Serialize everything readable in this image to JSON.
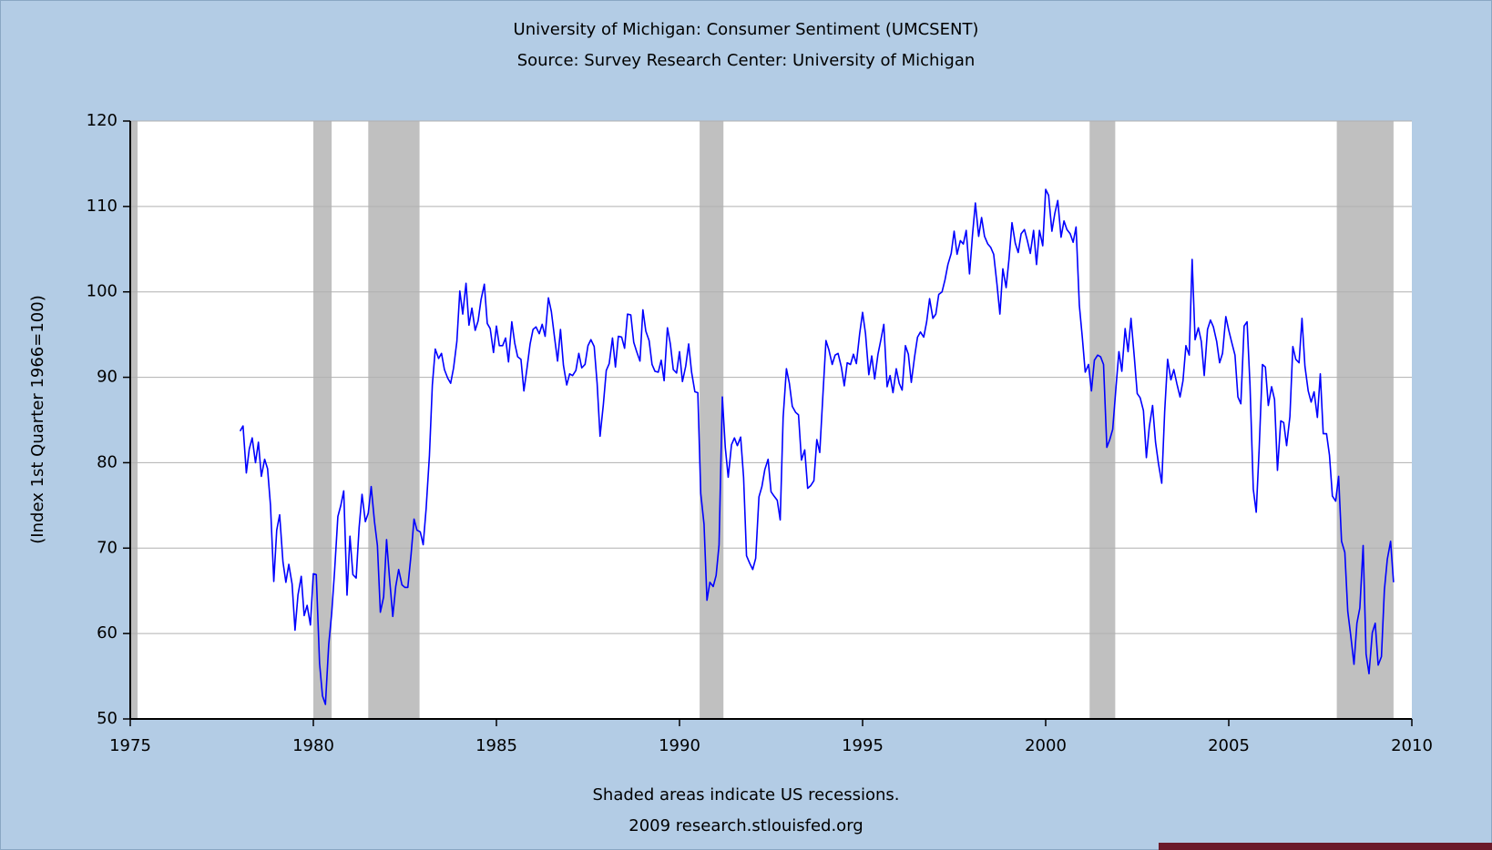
{
  "chart_data": {
    "type": "line",
    "title": "University of Michigan: Consumer Sentiment (UMCSENT)",
    "subtitle": "Source: Survey Research Center: University of Michigan",
    "y_label": "(Index 1st Quarter 1966=100)",
    "footnote": "Shaded areas indicate US recessions.",
    "credit": "2009 research.stlouisfed.org",
    "xlim": [
      1975,
      2010
    ],
    "xticks": [
      1975,
      1980,
      1985,
      1990,
      1995,
      2000,
      2005,
      2010
    ],
    "ylim": [
      50,
      120
    ],
    "yticks": [
      50,
      60,
      70,
      80,
      90,
      100,
      110,
      120
    ],
    "grid": true,
    "recession_color": "#c0c0c0",
    "recessions": [
      [
        1975.0,
        1975.2
      ],
      [
        1980.0,
        1980.5
      ],
      [
        1981.5,
        1982.9
      ],
      [
        1990.55,
        1991.2
      ],
      [
        2001.2,
        2001.9
      ],
      [
        2007.95,
        2009.5
      ]
    ],
    "series": [
      {
        "name": "UMCSENT",
        "color": "#0000ff",
        "x": [
          1978,
          1978.08,
          1978.17,
          1978.25,
          1978.33,
          1978.42,
          1978.5,
          1978.58,
          1978.67,
          1978.75,
          1978.83,
          1978.92,
          1979,
          1979.08,
          1979.17,
          1979.25,
          1979.33,
          1979.42,
          1979.5,
          1979.58,
          1979.67,
          1979.75,
          1979.83,
          1979.92,
          1980,
          1980.08,
          1980.17,
          1980.25,
          1980.33,
          1980.42,
          1980.5,
          1980.58,
          1980.67,
          1980.75,
          1980.83,
          1980.92,
          1981,
          1981.08,
          1981.17,
          1981.25,
          1981.33,
          1981.42,
          1981.5,
          1981.58,
          1981.67,
          1981.75,
          1981.83,
          1981.92,
          1982,
          1982.08,
          1982.17,
          1982.25,
          1982.33,
          1982.42,
          1982.5,
          1982.58,
          1982.67,
          1982.75,
          1982.83,
          1982.92,
          1983,
          1983.08,
          1983.17,
          1983.25,
          1983.33,
          1983.42,
          1983.5,
          1983.58,
          1983.67,
          1983.75,
          1983.83,
          1983.92,
          1984,
          1984.08,
          1984.17,
          1984.25,
          1984.33,
          1984.42,
          1984.5,
          1984.58,
          1984.67,
          1984.75,
          1984.83,
          1984.92,
          1985,
          1985.08,
          1985.17,
          1985.25,
          1985.33,
          1985.42,
          1985.5,
          1985.58,
          1985.67,
          1985.75,
          1985.83,
          1985.92,
          1986,
          1986.08,
          1986.17,
          1986.25,
          1986.33,
          1986.42,
          1986.5,
          1986.58,
          1986.67,
          1986.75,
          1986.83,
          1986.92,
          1987,
          1987.08,
          1987.17,
          1987.25,
          1987.33,
          1987.42,
          1987.5,
          1987.58,
          1987.67,
          1987.75,
          1987.83,
          1987.92,
          1988,
          1988.08,
          1988.17,
          1988.25,
          1988.33,
          1988.42,
          1988.5,
          1988.58,
          1988.67,
          1988.75,
          1988.83,
          1988.92,
          1989,
          1989.08,
          1989.17,
          1989.25,
          1989.33,
          1989.42,
          1989.5,
          1989.58,
          1989.67,
          1989.75,
          1989.83,
          1989.92,
          1990,
          1990.08,
          1990.17,
          1990.25,
          1990.33,
          1990.42,
          1990.5,
          1990.58,
          1990.67,
          1990.75,
          1990.83,
          1990.92,
          1991,
          1991.08,
          1991.17,
          1991.25,
          1991.33,
          1991.42,
          1991.5,
          1991.58,
          1991.67,
          1991.75,
          1991.83,
          1991.92,
          1992,
          1992.08,
          1992.17,
          1992.25,
          1992.33,
          1992.42,
          1992.5,
          1992.58,
          1992.67,
          1992.75,
          1992.83,
          1992.92,
          1993,
          1993.08,
          1993.17,
          1993.25,
          1993.33,
          1993.42,
          1993.5,
          1993.58,
          1993.67,
          1993.75,
          1993.83,
          1993.92,
          1994,
          1994.08,
          1994.17,
          1994.25,
          1994.33,
          1994.42,
          1994.5,
          1994.58,
          1994.67,
          1994.75,
          1994.83,
          1994.92,
          1995,
          1995.08,
          1995.17,
          1995.25,
          1995.33,
          1995.42,
          1995.5,
          1995.58,
          1995.67,
          1995.75,
          1995.83,
          1995.92,
          1996,
          1996.08,
          1996.17,
          1996.25,
          1996.33,
          1996.42,
          1996.5,
          1996.58,
          1996.67,
          1996.75,
          1996.83,
          1996.92,
          1997,
          1997.08,
          1997.17,
          1997.25,
          1997.33,
          1997.42,
          1997.5,
          1997.58,
          1997.67,
          1997.75,
          1997.83,
          1997.92,
          1998,
          1998.08,
          1998.17,
          1998.25,
          1998.33,
          1998.42,
          1998.5,
          1998.58,
          1998.67,
          1998.75,
          1998.83,
          1998.92,
          1999,
          1999.08,
          1999.17,
          1999.25,
          1999.33,
          1999.42,
          1999.5,
          1999.58,
          1999.67,
          1999.75,
          1999.83,
          1999.92,
          2000,
          2000.08,
          2000.17,
          2000.25,
          2000.33,
          2000.42,
          2000.5,
          2000.58,
          2000.67,
          2000.75,
          2000.83,
          2000.92,
          2001,
          2001.08,
          2001.17,
          2001.25,
          2001.33,
          2001.42,
          2001.5,
          2001.58,
          2001.67,
          2001.75,
          2001.83,
          2001.92,
          2002,
          2002.08,
          2002.17,
          2002.25,
          2002.33,
          2002.42,
          2002.5,
          2002.58,
          2002.67,
          2002.75,
          2002.83,
          2002.92,
          2003,
          2003.08,
          2003.17,
          2003.25,
          2003.33,
          2003.42,
          2003.5,
          2003.58,
          2003.67,
          2003.75,
          2003.83,
          2003.92,
          2004,
          2004.08,
          2004.17,
          2004.25,
          2004.33,
          2004.42,
          2004.5,
          2004.58,
          2004.67,
          2004.75,
          2004.83,
          2004.92,
          2005,
          2005.08,
          2005.17,
          2005.25,
          2005.33,
          2005.42,
          2005.5,
          2005.58,
          2005.67,
          2005.75,
          2005.83,
          2005.92,
          2006,
          2006.08,
          2006.17,
          2006.25,
          2006.33,
          2006.42,
          2006.5,
          2006.58,
          2006.67,
          2006.75,
          2006.83,
          2006.92,
          2007,
          2007.08,
          2007.17,
          2007.25,
          2007.33,
          2007.42,
          2007.5,
          2007.58,
          2007.67,
          2007.75,
          2007.83,
          2007.92,
          2008,
          2008.08,
          2008.17,
          2008.25,
          2008.33,
          2008.42,
          2008.5,
          2008.58,
          2008.67,
          2008.75,
          2008.83,
          2008.92,
          2009,
          2009.08,
          2009.17,
          2009.25,
          2009.33,
          2009.42,
          2009.5
        ],
        "values": [
          83.7,
          84.3,
          78.8,
          81.6,
          82.9,
          80.0,
          82.4,
          78.4,
          80.4,
          79.3,
          75.0,
          66.1,
          72.1,
          73.9,
          68.4,
          66.0,
          68.1,
          65.8,
          60.4,
          64.5,
          66.7,
          62.1,
          63.3,
          61.0,
          67.0,
          66.9,
          56.5,
          52.7,
          51.7,
          58.7,
          62.3,
          67.3,
          73.7,
          75.0,
          76.7,
          64.5,
          71.4,
          66.9,
          66.5,
          72.4,
          76.3,
          73.1,
          74.1,
          77.2,
          73.1,
          70.3,
          62.5,
          64.3,
          71.0,
          66.5,
          62.0,
          65.5,
          67.5,
          65.7,
          65.4,
          65.4,
          69.3,
          73.4,
          72.1,
          71.9,
          70.4,
          74.6,
          80.8,
          89.1,
          93.3,
          92.2,
          92.8,
          90.9,
          89.9,
          89.3,
          91.1,
          94.2,
          100.1,
          97.4,
          101.0,
          96.1,
          98.1,
          95.5,
          96.6,
          99.1,
          100.9,
          96.3,
          95.7,
          92.9,
          96.0,
          93.7,
          93.7,
          94.6,
          91.8,
          96.5,
          94.0,
          92.4,
          92.1,
          88.4,
          90.9,
          93.9,
          95.6,
          95.9,
          95.1,
          96.2,
          94.8,
          99.3,
          97.7,
          94.9,
          91.9,
          95.6,
          91.4,
          89.1,
          90.4,
          90.2,
          90.8,
          92.8,
          91.1,
          91.5,
          93.7,
          94.4,
          93.6,
          89.3,
          83.1,
          86.8,
          90.8,
          91.6,
          94.6,
          91.2,
          94.8,
          94.7,
          93.4,
          97.4,
          97.3,
          94.1,
          93.0,
          91.9,
          97.9,
          95.4,
          94.3,
          91.5,
          90.7,
          90.6,
          92.0,
          89.6,
          95.8,
          93.9,
          90.9,
          90.5,
          93.0,
          89.5,
          91.3,
          93.9,
          90.6,
          88.3,
          88.2,
          76.4,
          72.8,
          63.9,
          66.0,
          65.5,
          66.8,
          70.4,
          87.7,
          81.8,
          78.3,
          82.1,
          82.9,
          82.0,
          83.0,
          78.3,
          69.1,
          68.2,
          67.5,
          68.8,
          76.0,
          77.2,
          79.2,
          80.4,
          76.6,
          76.1,
          75.6,
          73.3,
          85.3,
          91.0,
          89.3,
          86.6,
          85.9,
          85.6,
          80.3,
          81.5,
          77.0,
          77.3,
          77.9,
          82.7,
          81.2,
          88.2,
          94.3,
          93.2,
          91.5,
          92.6,
          92.8,
          91.2,
          89.0,
          91.7,
          91.5,
          92.7,
          91.6,
          95.1,
          97.6,
          95.1,
          90.3,
          92.5,
          89.8,
          92.7,
          94.4,
          96.2,
          88.9,
          90.2,
          88.2,
          91.0,
          89.3,
          88.5,
          93.7,
          92.7,
          89.4,
          92.4,
          94.7,
          95.3,
          94.7,
          96.5,
          99.2,
          96.9,
          97.4,
          99.7,
          100.0,
          101.4,
          103.2,
          104.5,
          107.1,
          104.4,
          106.0,
          105.6,
          107.2,
          102.1,
          106.6,
          110.4,
          106.5,
          108.7,
          106.5,
          105.6,
          105.2,
          104.4,
          100.9,
          97.4,
          102.7,
          100.5,
          103.9,
          108.1,
          105.7,
          104.6,
          106.8,
          107.3,
          106.0,
          104.5,
          107.2,
          103.2,
          107.2,
          105.4,
          112.0,
          111.3,
          107.1,
          109.2,
          110.7,
          106.4,
          108.3,
          107.3,
          106.8,
          105.8,
          107.6,
          98.4,
          94.7,
          90.6,
          91.5,
          88.4,
          92.0,
          92.6,
          92.4,
          91.5,
          81.8,
          82.7,
          83.9,
          88.8,
          93.0,
          90.7,
          95.7,
          93.0,
          96.9,
          92.4,
          88.1,
          87.6,
          86.1,
          80.6,
          84.2,
          86.7,
          82.4,
          79.9,
          77.6,
          86.0,
          92.1,
          89.7,
          90.9,
          89.3,
          87.7,
          89.6,
          93.7,
          92.6,
          103.8,
          94.4,
          95.8,
          94.2,
          90.2,
          95.6,
          96.7,
          95.9,
          94.2,
          91.7,
          92.8,
          97.1,
          95.5,
          94.1,
          92.6,
          87.7,
          86.9,
          96.0,
          96.5,
          89.1,
          76.9,
          74.2,
          81.6,
          91.5,
          91.2,
          86.7,
          88.9,
          87.4,
          79.1,
          84.9,
          84.7,
          82.0,
          85.4,
          93.6,
          92.1,
          91.7,
          96.9,
          91.3,
          88.4,
          87.1,
          88.3,
          85.3,
          90.4,
          83.4,
          83.4,
          80.9,
          76.1,
          75.5,
          78.4,
          70.8,
          69.5,
          62.6,
          59.8,
          56.4,
          61.2,
          63.0,
          70.3,
          57.6,
          55.3,
          60.1,
          61.2,
          56.3,
          57.3,
          65.1,
          68.7,
          70.8,
          66.0
        ]
      }
    ]
  }
}
